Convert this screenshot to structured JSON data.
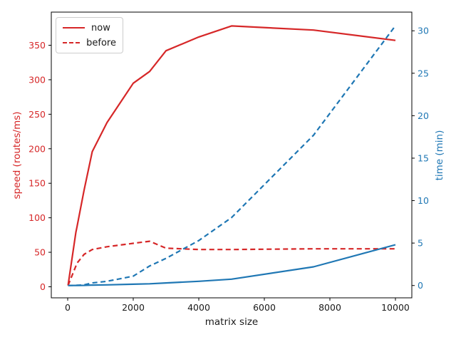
{
  "axes": {
    "x": {
      "label": "matrix size",
      "ticks": [
        0,
        2000,
        4000,
        6000,
        8000,
        10000
      ],
      "color": "#1a1a1a"
    },
    "y_left": {
      "label": "speed (routes/ms)",
      "ticks": [
        0,
        50,
        100,
        150,
        200,
        250,
        300,
        350
      ],
      "color": "#d62728"
    },
    "y_right": {
      "label": "time (min)",
      "ticks": [
        0,
        5,
        10,
        15,
        20,
        25,
        30
      ],
      "color": "#1f77b4"
    }
  },
  "legend": {
    "position": "upper left",
    "items": [
      {
        "label": "now",
        "line_style": "solid",
        "color": "#d62728"
      },
      {
        "label": "before",
        "line_style": "dashed",
        "color": "#d62728"
      }
    ]
  },
  "chart_data": {
    "type": "line",
    "title": "",
    "xlabel": "matrix size",
    "ylabel_left": "speed (routes/ms)",
    "ylabel_right": "time (min)",
    "grid": false,
    "legend_position": "upper left",
    "xlim": [
      -500,
      10500
    ],
    "ylim_left": [
      -16,
      398
    ],
    "ylim_right": [
      -1.45,
      32.2
    ],
    "xticks": [
      0,
      2000,
      4000,
      6000,
      8000,
      10000
    ],
    "yticks_left": [
      0,
      50,
      100,
      150,
      200,
      250,
      300,
      350
    ],
    "yticks_right": [
      0,
      5,
      10,
      15,
      20,
      25,
      30
    ],
    "x": [
      10,
      250,
      280,
      500,
      750,
      1200,
      2000,
      2500,
      3000,
      4000,
      5000,
      7500,
      10000
    ],
    "series": [
      {
        "name": "now-speed",
        "legend": "now",
        "axis": "left",
        "color": "#d62728",
        "dash": "solid",
        "values": [
          2,
          79,
          86,
          140,
          196,
          238,
          295,
          312,
          342,
          362,
          378,
          372,
          357
        ]
      },
      {
        "name": "before-speed",
        "legend": "before",
        "axis": "left",
        "color": "#d62728",
        "dash": "dashed",
        "values": [
          2,
          30,
          34,
          47,
          54,
          58,
          63,
          66,
          56,
          54,
          54,
          55,
          55
        ]
      },
      {
        "name": "now-time",
        "legend": "now",
        "axis": "right",
        "color": "#1f77b4",
        "dash": "solid",
        "values": [
          0,
          0.01,
          0.01,
          0.02,
          0.05,
          0.08,
          0.15,
          0.2,
          0.3,
          0.5,
          0.75,
          2.2,
          4.8
        ]
      },
      {
        "name": "before-time",
        "legend": "before",
        "axis": "right",
        "color": "#1f77b4",
        "dash": "dashed",
        "values": [
          0,
          0.02,
          0.03,
          0.08,
          0.3,
          0.5,
          1.1,
          2.3,
          3.2,
          5.3,
          8.0,
          17.7,
          30.6
        ]
      }
    ]
  }
}
